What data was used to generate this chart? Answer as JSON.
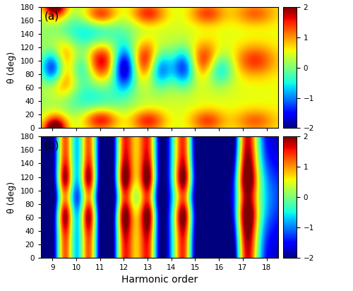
{
  "title_a": "(a)",
  "title_b": "(b)",
  "xlabel": "Harmonic order",
  "ylabel": "θ (deg)",
  "x_min": 8.5,
  "x_max": 18.5,
  "y_min": 0,
  "y_max": 180,
  "vmin": -2,
  "vmax": 2,
  "x_ticks": [
    9,
    10,
    11,
    12,
    13,
    14,
    15,
    16,
    17,
    18
  ],
  "y_ticks": [
    0,
    20,
    40,
    60,
    80,
    100,
    120,
    140,
    160,
    180
  ],
  "colorbar_ticks": [
    -2,
    -1,
    0,
    1,
    2
  ],
  "cmap": "jet",
  "fig_width": 5.0,
  "fig_height": 4.12
}
